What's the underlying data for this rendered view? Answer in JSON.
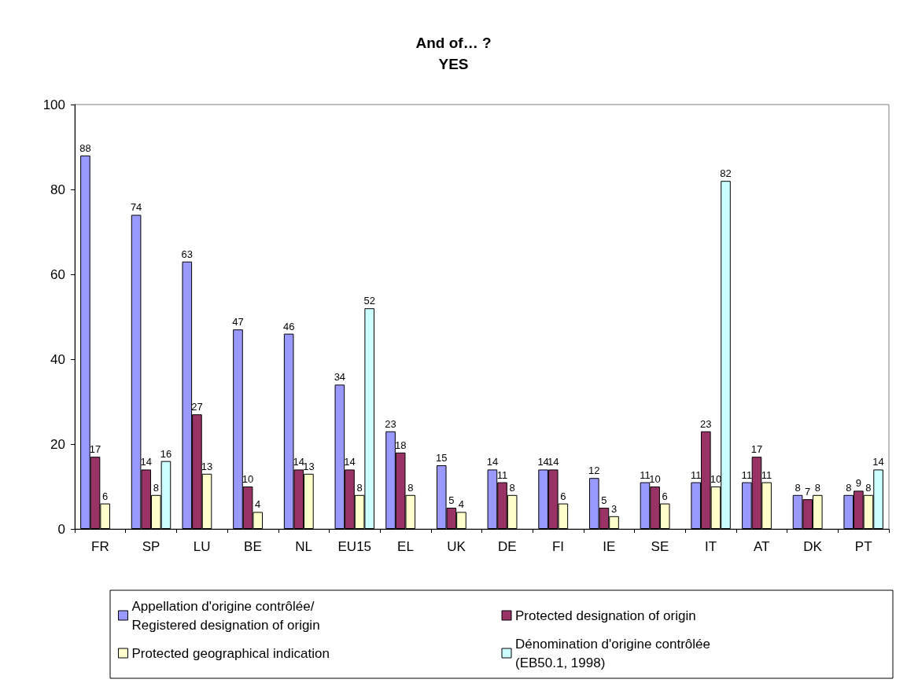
{
  "chart_data": {
    "type": "bar",
    "title": "And of… ?",
    "subtitle": "YES",
    "categories": [
      "FR",
      "SP",
      "LU",
      "BE",
      "NL",
      "EU15",
      "EL",
      "UK",
      "DE",
      "FI",
      "IE",
      "SE",
      "IT",
      "AT",
      "DK",
      "PT"
    ],
    "series": [
      {
        "name": "Appellation d'origine contrôlée/\nRegistered designation of origin",
        "color": "#9999ff",
        "values": [
          88,
          74,
          63,
          47,
          46,
          34,
          23,
          15,
          14,
          14,
          12,
          11,
          11,
          11,
          8,
          8
        ]
      },
      {
        "name": "Protected designation of origin",
        "color": "#993366",
        "values": [
          17,
          14,
          27,
          10,
          14,
          14,
          18,
          5,
          11,
          14,
          5,
          10,
          23,
          17,
          7,
          9
        ]
      },
      {
        "name": "Protected geographical indication",
        "color": "#ffffcc",
        "values": [
          6,
          8,
          13,
          4,
          13,
          8,
          8,
          4,
          8,
          6,
          3,
          6,
          10,
          11,
          8,
          8
        ]
      },
      {
        "name": "Dénomination d'origine contrôlée\n(EB50.1, 1998)",
        "color": "#ccffff",
        "values": [
          null,
          16,
          null,
          null,
          null,
          52,
          null,
          null,
          null,
          null,
          null,
          null,
          82,
          null,
          null,
          14
        ]
      }
    ],
    "ylim": [
      0,
      100
    ],
    "yticks": [
      0,
      20,
      40,
      60,
      80,
      100
    ],
    "grid": false,
    "legend": "bottom",
    "data_labels": true
  }
}
